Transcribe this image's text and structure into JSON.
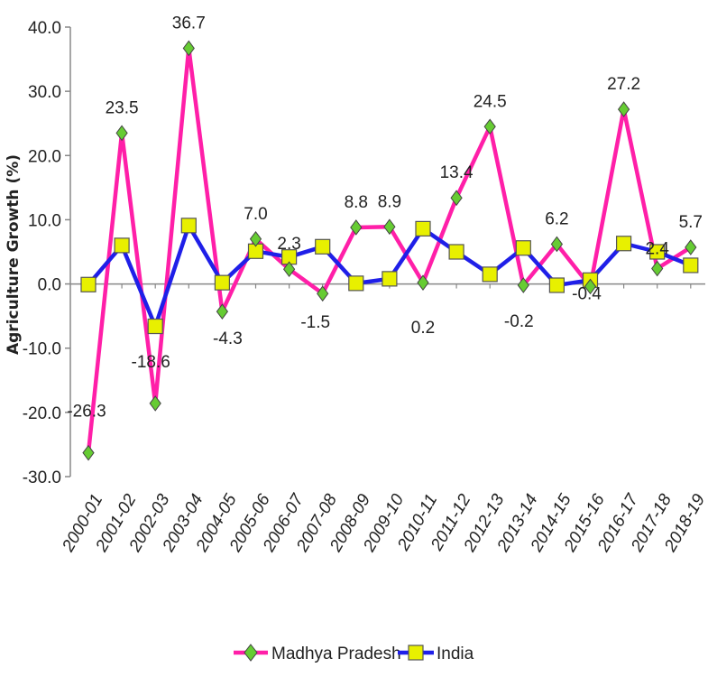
{
  "chart_data": {
    "type": "line",
    "ylabel": "Agriculture Growth (%)",
    "xlabel": "",
    "ylim": [
      -30,
      40
    ],
    "yticks": [
      40,
      30,
      20,
      10,
      0,
      -10,
      -20,
      -30
    ],
    "ytick_labels": [
      "40.0",
      "30.0",
      "20.0",
      "10.0",
      "0.0",
      "-10.0",
      "-20.0",
      "-30.0"
    ],
    "categories": [
      "2000-01",
      "2001-02",
      "2002-03",
      "2003-04",
      "2004-05",
      "2005-06",
      "2006-07",
      "2007-08",
      "2008-09",
      "2009-10",
      "2010-11",
      "2011-12",
      "2012-13",
      "2013-14",
      "2014-15",
      "2015-16",
      "2016-17",
      "2017-18",
      "2018-19"
    ],
    "series": [
      {
        "name": "Madhya Pradesh",
        "color": "#ff1fa8",
        "marker": "diamond",
        "marker_color": "#66cc33",
        "values": [
          -26.3,
          23.5,
          -18.6,
          36.7,
          -4.3,
          7.0,
          2.3,
          -1.5,
          8.8,
          8.9,
          0.2,
          13.4,
          24.5,
          -0.2,
          6.2,
          -0.4,
          27.2,
          2.4,
          5.7
        ],
        "labels": [
          "-26.3",
          "23.5",
          "-18.6",
          "36.7",
          "-4.3",
          "7.0",
          "2.3",
          "-1.5",
          "8.8",
          "8.9",
          "0.2",
          "13.4",
          "24.5",
          "-0.2",
          "6.2",
          "-0.4",
          "27.2",
          "2.4",
          "5.7"
        ]
      },
      {
        "name": "India",
        "color": "#1f1fe8",
        "marker": "square",
        "marker_color": "#e8f000",
        "values": [
          -0.1,
          6.0,
          -6.6,
          9.1,
          0.2,
          5.1,
          4.2,
          5.8,
          0.1,
          0.8,
          8.6,
          5.0,
          1.5,
          5.6,
          -0.2,
          0.6,
          6.3,
          5.0,
          2.9
        ]
      }
    ],
    "grid": false,
    "legend_position": "bottom"
  }
}
